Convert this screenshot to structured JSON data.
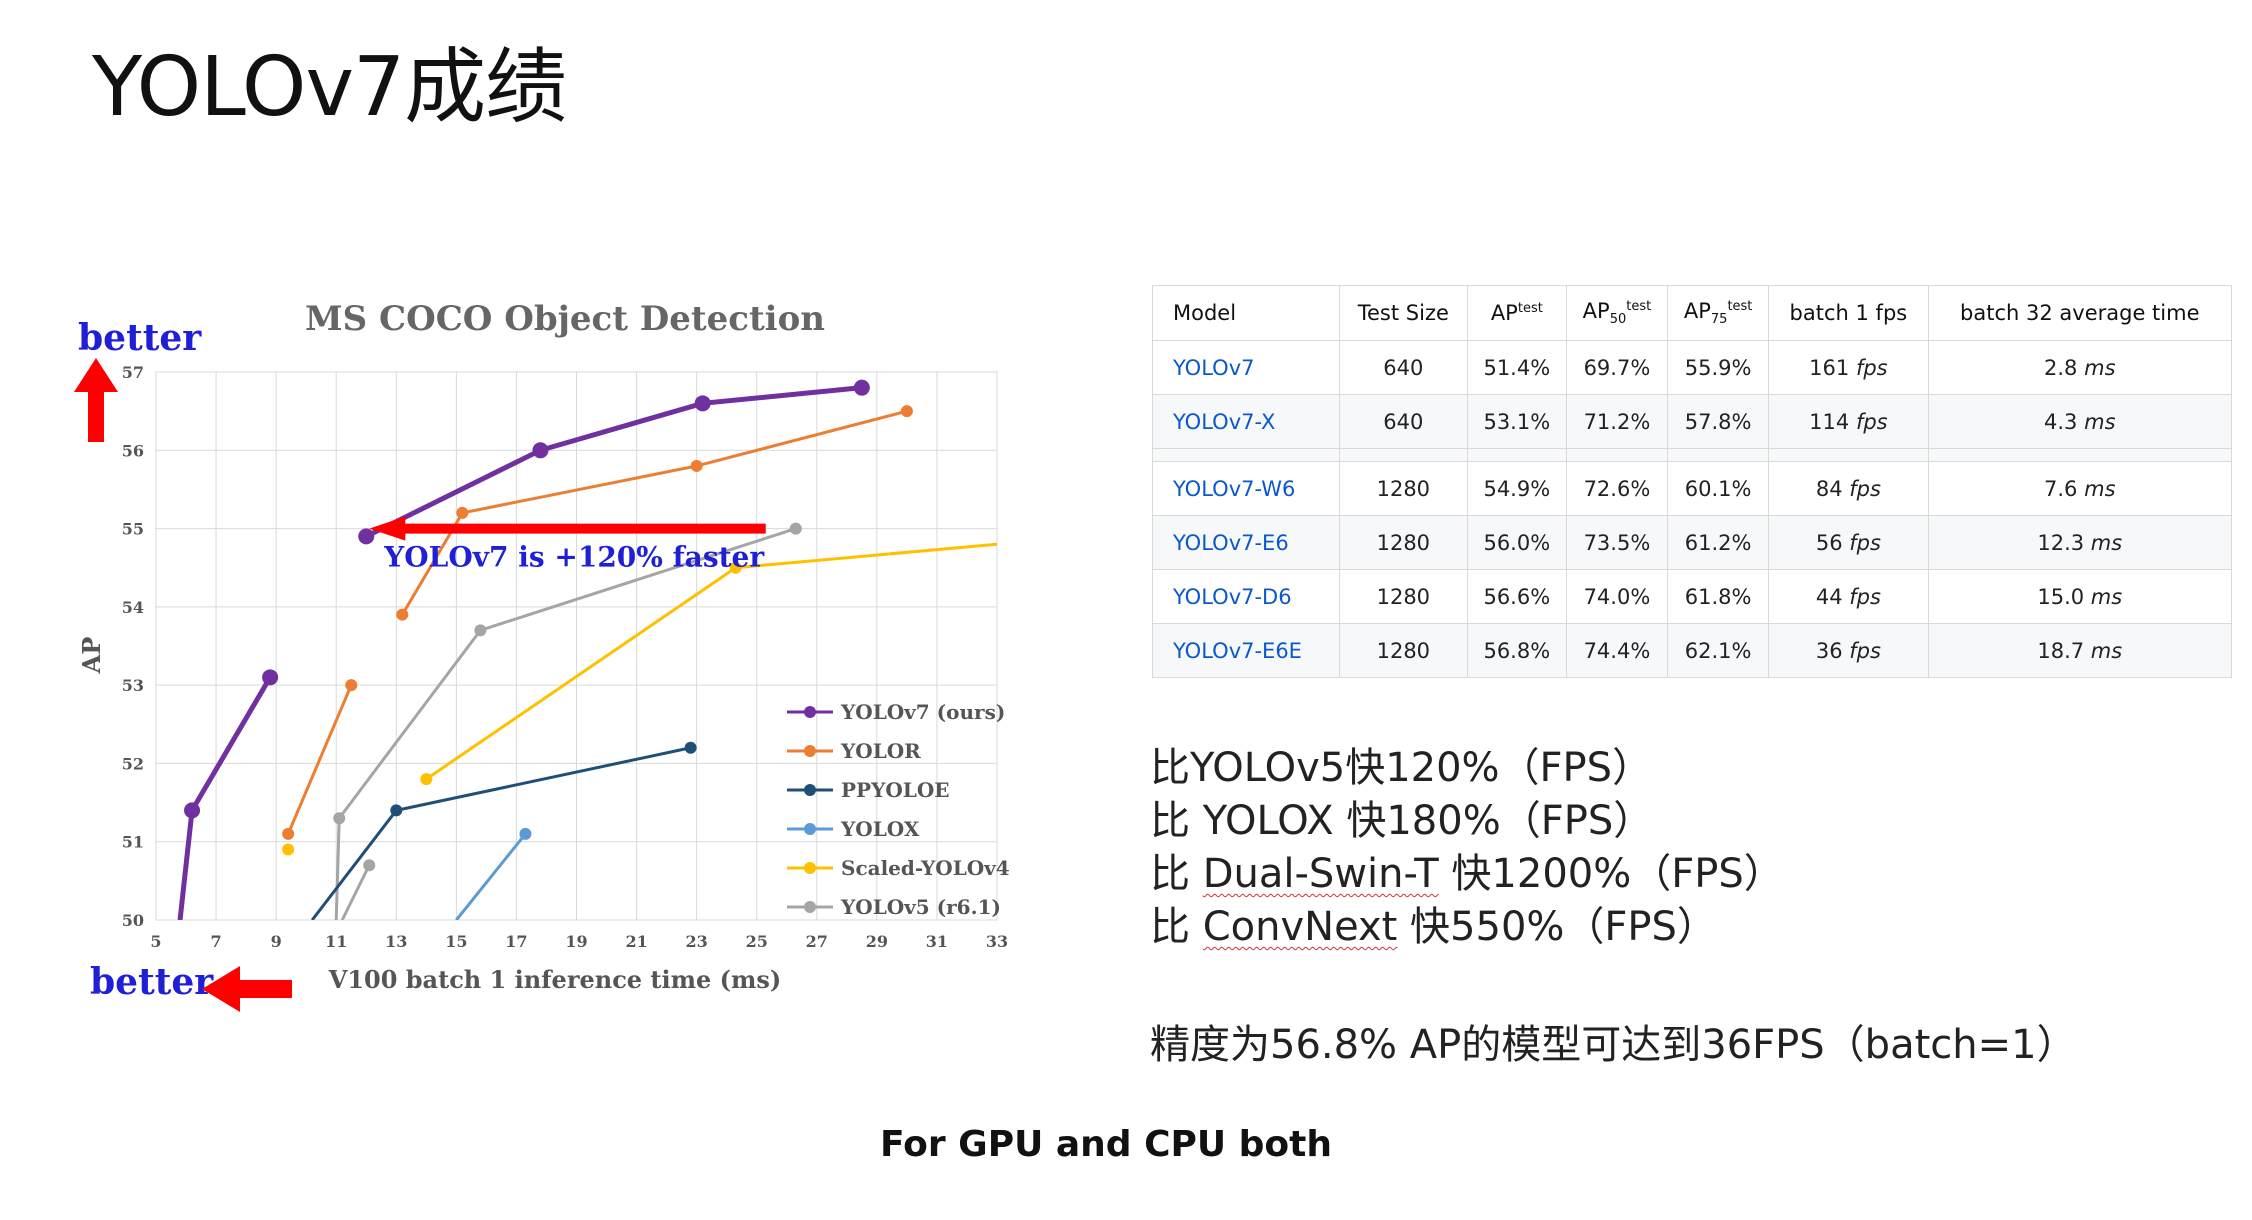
{
  "slide": {
    "title": "YOLOv7成绩",
    "footer": "For GPU and CPU both"
  },
  "chart_data": {
    "type": "line",
    "title": "MS COCO Object Detection",
    "xlabel": "V100 batch 1 inference time (ms)",
    "ylabel": "AP",
    "xlim": [
      5,
      33
    ],
    "ylim": [
      50,
      57
    ],
    "xticks": [
      "5",
      "7",
      "9",
      "11",
      "13",
      "15",
      "17",
      "19",
      "21",
      "23",
      "25",
      "27",
      "29",
      "31",
      "33"
    ],
    "yticks": [
      "50",
      "51",
      "52",
      "53",
      "54",
      "55",
      "56",
      "57"
    ],
    "grid": true,
    "legend_position": "bottom-right",
    "annotations": {
      "better_top": "better",
      "better_bottom": "better",
      "arrow_text": "YOLOv7 is +120% faster"
    },
    "series": [
      {
        "name": "YOLOv7 (ours)",
        "color": "#7030a0",
        "points": [
          [
            5.8,
            50.0
          ],
          [
            6.2,
            51.4
          ],
          [
            8.8,
            53.1
          ]
        ],
        "points2": [
          [
            12.0,
            54.9
          ],
          [
            17.8,
            56.0
          ],
          [
            23.2,
            56.6
          ],
          [
            28.5,
            56.8
          ]
        ]
      },
      {
        "name": "YOLOR",
        "color": "#ed7d31",
        "points": [
          [
            9.4,
            51.1
          ],
          [
            11.5,
            53.0
          ]
        ],
        "points2": [
          [
            13.2,
            53.9
          ],
          [
            15.2,
            55.2
          ],
          [
            23.0,
            55.8
          ],
          [
            30.0,
            56.5
          ]
        ]
      },
      {
        "name": "PPYOLOE",
        "color": "#1f4e79",
        "points": [
          [
            10.2,
            50.0
          ],
          [
            13.0,
            51.4
          ],
          [
            22.8,
            52.2
          ]
        ]
      },
      {
        "name": "YOLOX",
        "color": "#5b9bd5",
        "points": [
          [
            15.0,
            50.0
          ],
          [
            17.3,
            51.1
          ]
        ]
      },
      {
        "name": "Scaled-YOLOv4",
        "color": "#ffc000",
        "points": [
          [
            9.4,
            50.9
          ]
        ],
        "points2": [
          [
            14.0,
            51.8
          ],
          [
            24.3,
            54.5
          ],
          [
            33.0,
            54.8
          ]
        ]
      },
      {
        "name": "YOLOv5 (r6.1)",
        "color": "#a5a5a5",
        "points": [
          [
            11.2,
            50.0
          ],
          [
            12.1,
            50.7
          ]
        ],
        "points2": [
          [
            11.0,
            50.0
          ],
          [
            11.1,
            51.3
          ],
          [
            15.8,
            53.7
          ],
          [
            26.3,
            55.0
          ]
        ]
      }
    ]
  },
  "table": {
    "headers": [
      "Model",
      "Test Size",
      "AP",
      "AP",
      "AP",
      "batch 1 fps",
      "batch 32 average time"
    ],
    "header_sups": [
      "",
      "",
      "test",
      "test",
      "test",
      "",
      ""
    ],
    "header_subs": [
      "",
      "",
      "",
      "50",
      "75",
      "",
      ""
    ],
    "rows": [
      [
        "YOLOv7",
        "640",
        "51.4%",
        "69.7%",
        "55.9%",
        "161",
        "2.8"
      ],
      [
        "YOLOv7-X",
        "640",
        "53.1%",
        "71.2%",
        "57.8%",
        "114",
        "4.3"
      ],
      [
        "YOLOv7-W6",
        "1280",
        "54.9%",
        "72.6%",
        "60.1%",
        "84",
        "7.6"
      ],
      [
        "YOLOv7-E6",
        "1280",
        "56.0%",
        "73.5%",
        "61.2%",
        "56",
        "12.3"
      ],
      [
        "YOLOv7-D6",
        "1280",
        "56.6%",
        "74.0%",
        "61.8%",
        "44",
        "15.0"
      ],
      [
        "YOLOv7-E6E",
        "1280",
        "56.8%",
        "74.4%",
        "62.1%",
        "36",
        "18.7"
      ]
    ],
    "fps_unit": "fps",
    "time_unit": "ms"
  },
  "notes": {
    "line1": "比YOLOv5快120%（FPS）",
    "line2_a": "比 YOLOX 快180%（FPS）",
    "line3_a": "比 ",
    "line3_b": "Dual-Swin-T",
    "line3_c": " 快1200%（FPS）",
    "line4_a": "比 ",
    "line4_b": "ConvNext",
    "line4_c": " 快550%（FPS）",
    "summary": "精度为56.8% AP的模型可达到36FPS（batch=1）"
  }
}
